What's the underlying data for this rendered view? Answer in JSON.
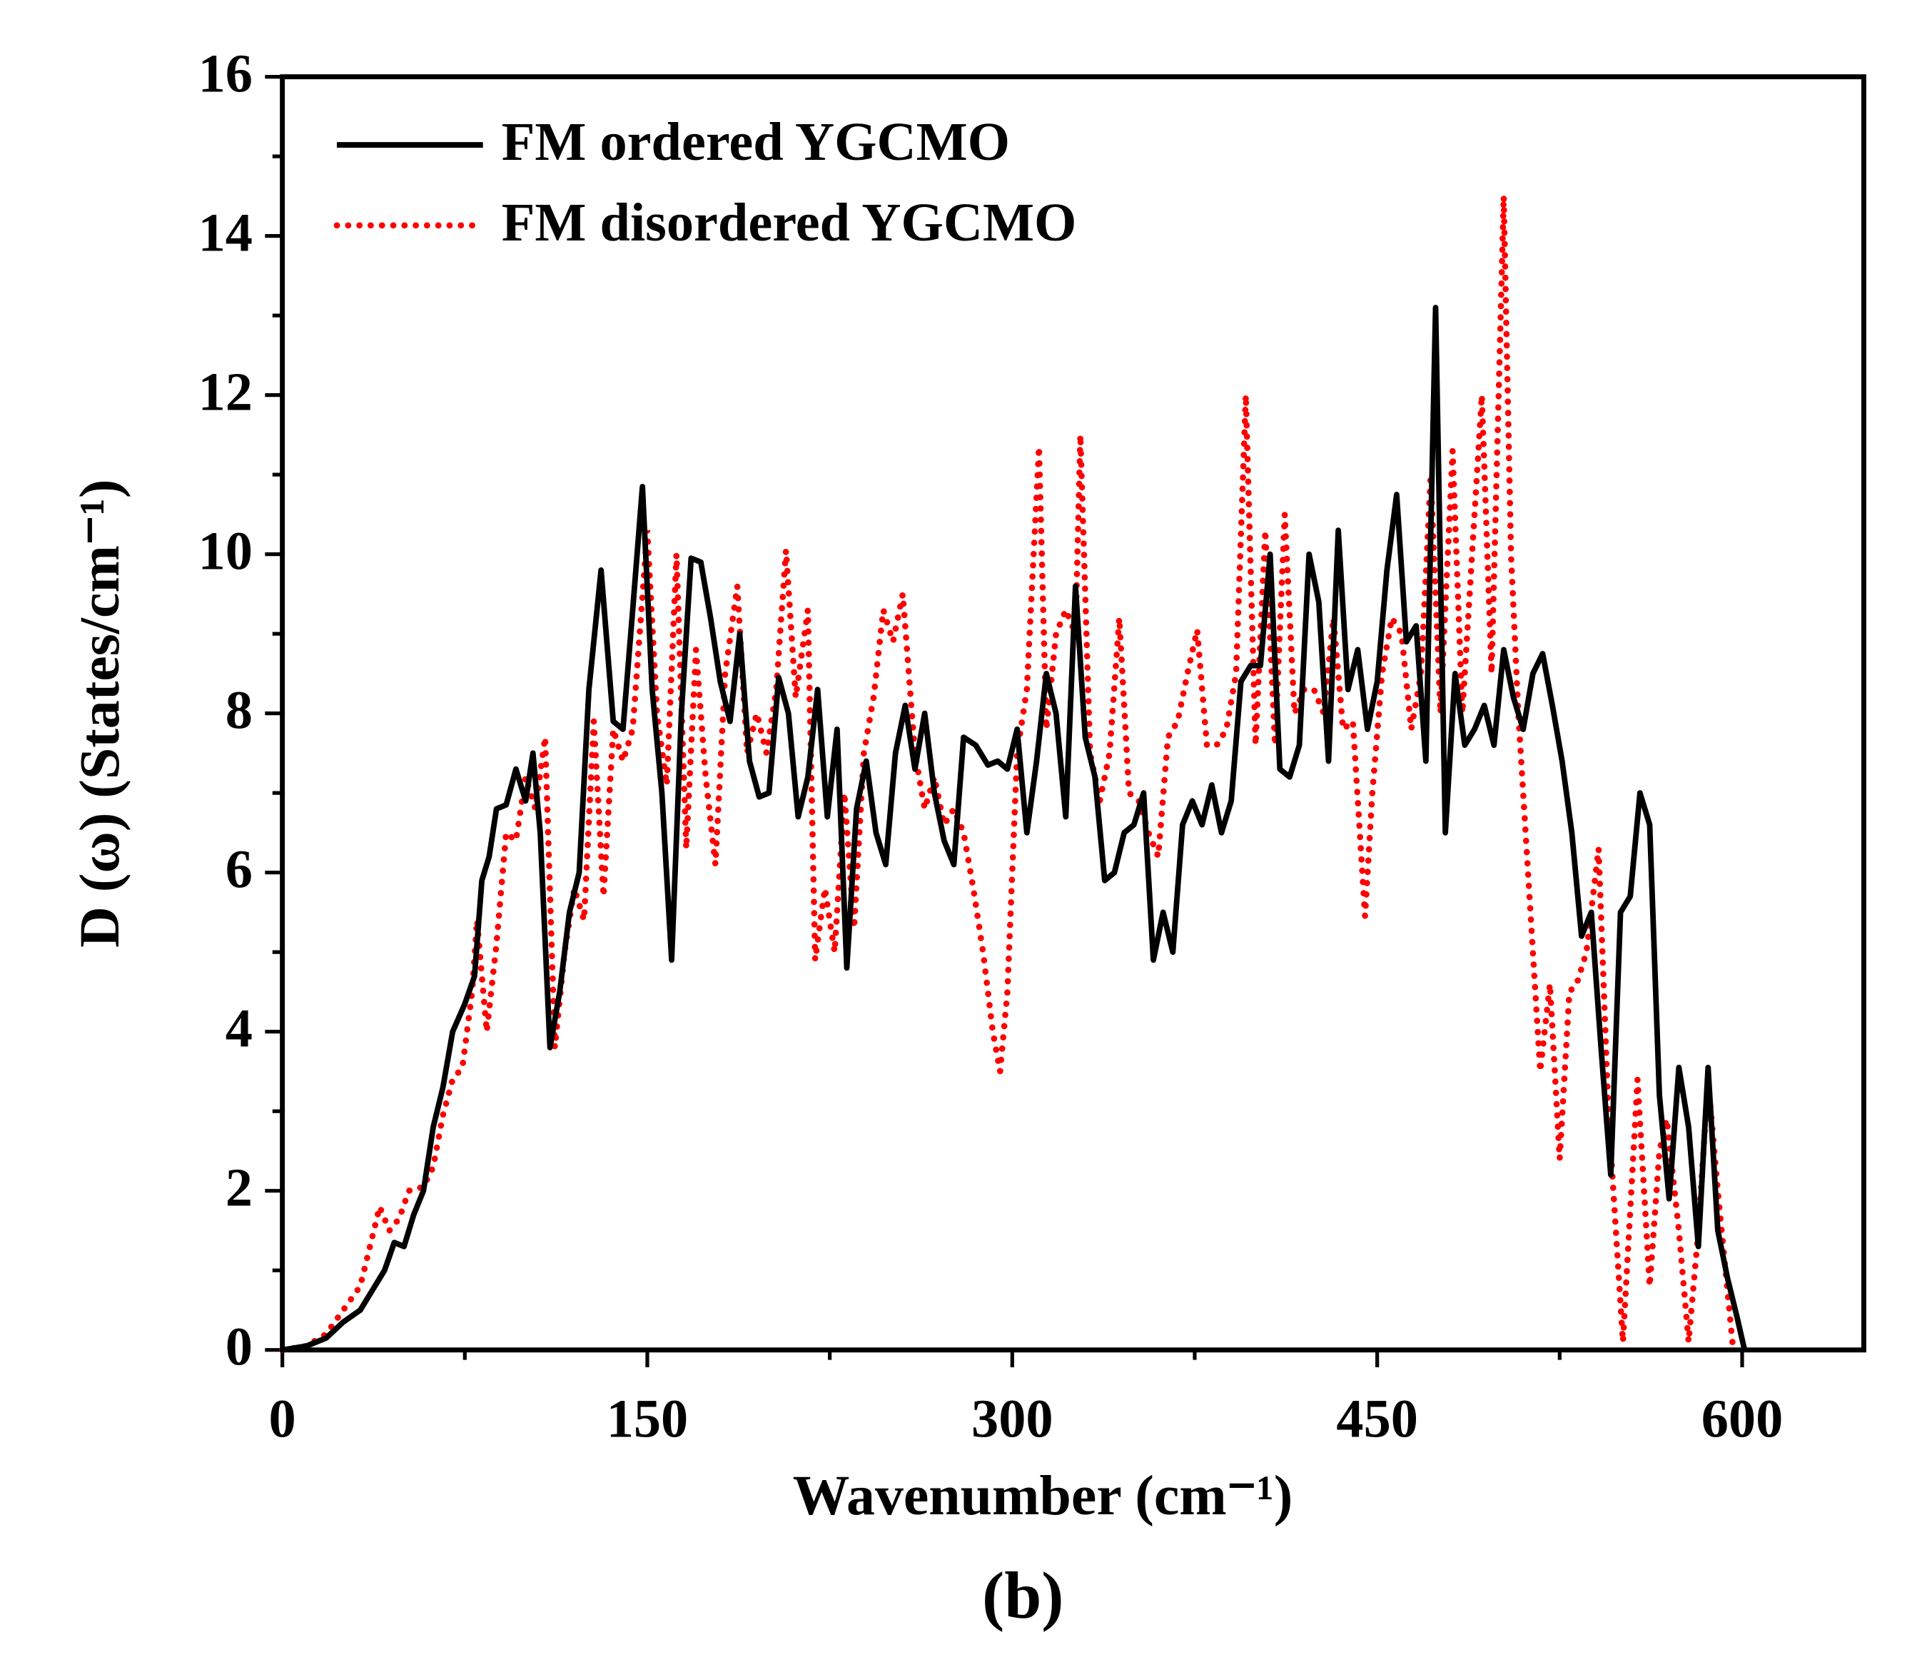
{
  "chart_data": {
    "type": "line",
    "xlabel": "Wavenumber (cm⁻¹)",
    "ylabel": "D (ω) (States/cm⁻¹)",
    "annotation": "(b)",
    "xlim": [
      0,
      650
    ],
    "ylim": [
      0,
      16
    ],
    "xticks": [
      0,
      150,
      300,
      450,
      600
    ],
    "yticks": [
      0,
      2,
      4,
      6,
      8,
      10,
      12,
      14,
      16
    ],
    "xticks_minor": [
      75,
      225,
      375,
      525
    ],
    "yticks_minor": [
      1,
      3,
      5,
      7,
      9,
      11,
      13,
      15
    ],
    "legend": "upper left",
    "series": [
      {
        "name": "FM ordered YGCMO",
        "color": "#000000",
        "style": "solid",
        "x": [
          0,
          10,
          18,
          25,
          32,
          38,
          42,
          46,
          50,
          54,
          58,
          62,
          66,
          70,
          75,
          79,
          82,
          85,
          88,
          92,
          96,
          100,
          103,
          106,
          110,
          114,
          118,
          122,
          126,
          131,
          136,
          140,
          144,
          148,
          152,
          156,
          160,
          164,
          168,
          172,
          176,
          180,
          184,
          188,
          192,
          196,
          200,
          204,
          208,
          212,
          216,
          220,
          224,
          228,
          232,
          236,
          240,
          244,
          248,
          252,
          256,
          260,
          264,
          268,
          272,
          276,
          280,
          285,
          290,
          294,
          298,
          302,
          306,
          310,
          314,
          318,
          322,
          326,
          330,
          334,
          338,
          342,
          346,
          350,
          354,
          358,
          362,
          366,
          370,
          374,
          378,
          382,
          386,
          390,
          394,
          398,
          402,
          406,
          410,
          414,
          418,
          422,
          426,
          430,
          434,
          438,
          442,
          446,
          450,
          454,
          458,
          462,
          466,
          470,
          474,
          478,
          482,
          486,
          490,
          494,
          498,
          502,
          506,
          510,
          514,
          518,
          522,
          526,
          530,
          534,
          538,
          542,
          546,
          550,
          554,
          558,
          562,
          566,
          570,
          574,
          578,
          582,
          586,
          590,
          594,
          598,
          601
        ],
        "values": [
          0,
          0.05,
          0.15,
          0.35,
          0.5,
          0.8,
          1.0,
          1.35,
          1.3,
          1.7,
          2.0,
          2.8,
          3.3,
          4.0,
          4.35,
          4.7,
          5.9,
          6.2,
          6.8,
          6.85,
          7.3,
          6.9,
          7.5,
          6.5,
          3.8,
          4.5,
          5.5,
          6.0,
          8.3,
          9.8,
          7.9,
          7.8,
          9.3,
          10.85,
          8.3,
          7.0,
          4.9,
          8.0,
          9.95,
          9.9,
          9.2,
          8.4,
          7.9,
          9.0,
          7.4,
          6.95,
          7.0,
          8.45,
          8.0,
          6.7,
          7.2,
          8.3,
          6.7,
          7.8,
          4.8,
          6.8,
          7.4,
          6.5,
          6.1,
          7.5,
          8.1,
          7.3,
          8.0,
          7.0,
          6.4,
          6.1,
          7.7,
          7.6,
          7.35,
          7.4,
          7.3,
          7.8,
          6.5,
          7.4,
          8.5,
          8.0,
          6.7,
          9.6,
          7.7,
          7.2,
          5.9,
          6.0,
          6.5,
          6.6,
          7.0,
          4.9,
          5.5,
          5.0,
          6.6,
          6.9,
          6.6,
          7.1,
          6.5,
          6.9,
          8.4,
          8.6,
          8.6,
          10.0,
          7.3,
          7.2,
          7.6,
          10.0,
          9.4,
          7.4,
          10.3,
          8.3,
          8.8,
          7.8,
          8.4,
          9.8,
          10.75,
          8.9,
          9.1,
          7.4,
          13.1,
          6.5,
          8.5,
          7.6,
          7.8,
          8.1,
          7.6,
          8.8,
          8.2,
          7.8,
          8.5,
          8.75,
          8.1,
          7.4,
          6.5,
          5.2,
          5.5,
          3.8,
          2.2,
          5.5,
          5.7,
          7.0,
          6.6,
          3.2,
          1.9,
          3.55,
          2.8,
          1.3,
          3.55,
          1.5,
          0.9,
          0.4,
          0
        ]
      },
      {
        "name": "FM disordered YGCMO",
        "color": "#ff0000",
        "style": "dotted",
        "x": [
          0,
          10,
          18,
          25,
          32,
          36,
          40,
          44,
          48,
          52,
          58,
          62,
          66,
          70,
          74,
          78,
          80,
          84,
          88,
          92,
          96,
          100,
          104,
          108,
          112,
          116,
          120,
          124,
          128,
          132,
          136,
          140,
          144,
          150,
          154,
          158,
          162,
          166,
          170,
          174,
          178,
          182,
          187,
          191,
          195,
          199,
          203,
          207,
          211,
          216,
          219,
          223,
          227,
          231,
          235,
          239,
          243,
          247,
          251,
          255,
          260,
          264,
          268,
          272,
          276,
          280,
          284,
          288,
          292,
          295,
          298,
          302,
          306,
          311,
          314,
          318,
          322,
          326,
          328,
          332,
          336,
          340,
          344,
          348,
          352,
          356,
          360,
          364,
          368,
          372,
          376,
          380,
          384,
          388,
          392,
          396,
          400,
          404,
          408,
          412,
          416,
          420,
          424,
          428,
          432,
          436,
          440,
          445,
          448,
          452,
          456,
          460,
          464,
          468,
          472,
          476,
          481,
          485,
          489,
          493,
          497,
          502,
          505,
          508,
          512,
          517,
          521,
          525,
          529,
          532,
          536,
          541,
          545,
          551,
          557,
          562,
          566,
          569,
          574,
          578,
          582,
          586,
          590,
          596
        ],
        "values": [
          0,
          0.05,
          0.2,
          0.5,
          0.8,
          1.3,
          1.8,
          1.5,
          1.65,
          2.0,
          2.05,
          2.3,
          2.95,
          3.4,
          3.55,
          4.5,
          5.4,
          4.0,
          5.1,
          6.5,
          6.4,
          7.2,
          6.8,
          7.7,
          3.8,
          5.0,
          5.8,
          5.4,
          7.9,
          5.7,
          7.8,
          7.4,
          7.8,
          10.3,
          8.0,
          7.1,
          10.0,
          6.3,
          8.8,
          7.2,
          6.1,
          8.5,
          9.6,
          7.5,
          8.0,
          7.5,
          8.3,
          10.05,
          8.2,
          9.3,
          4.9,
          5.8,
          5.0,
          7.0,
          5.3,
          7.5,
          8.2,
          9.3,
          8.9,
          9.5,
          7.5,
          6.8,
          7.2,
          6.6,
          6.8,
          6.5,
          5.8,
          5.0,
          4.0,
          3.5,
          4.5,
          7.5,
          8.3,
          11.35,
          7.8,
          9.0,
          9.3,
          9.0,
          11.5,
          7.5,
          6.9,
          7.5,
          9.2,
          7.0,
          6.9,
          6.5,
          6.2,
          7.7,
          7.9,
          8.5,
          9.05,
          7.6,
          7.6,
          7.8,
          8.5,
          12.0,
          7.6,
          10.3,
          7.6,
          10.5,
          8.0,
          8.3,
          8.3,
          8.0,
          9.2,
          7.8,
          7.9,
          5.45,
          7.0,
          8.5,
          9.2,
          9.0,
          7.8,
          8.5,
          11.0,
          8.0,
          11.3,
          8.0,
          10.0,
          12.0,
          8.5,
          14.5,
          10.0,
          8.0,
          6.0,
          3.5,
          4.6,
          2.4,
          4.5,
          4.6,
          5.0,
          6.3,
          3.0,
          0.1,
          3.4,
          0.8,
          2.5,
          2.9,
          1.5,
          0.1,
          1.5,
          3.4,
          2.0,
          0.1
        ]
      }
    ]
  }
}
